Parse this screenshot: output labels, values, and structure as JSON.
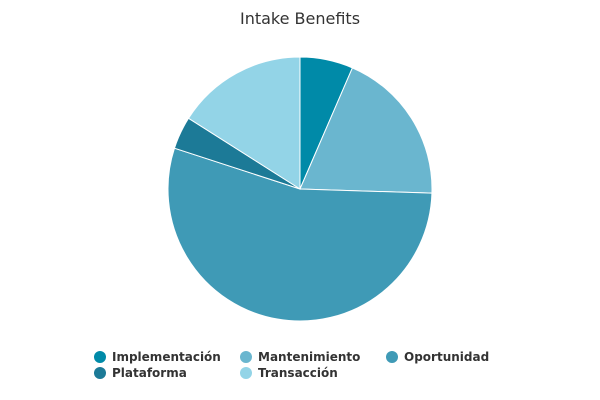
{
  "chart_data": {
    "type": "pie",
    "title": "Intake Benefits",
    "legend_position": "bottom",
    "start_angle_deg": 0,
    "direction": "clockwise",
    "slices": [
      {
        "name": "Implementación",
        "value": 6.5,
        "color": "#008aa8"
      },
      {
        "name": "Mantenimiento",
        "value": 19.0,
        "color": "#6ab6cf"
      },
      {
        "name": "Oportunidad",
        "value": 54.5,
        "color": "#3f9ab6"
      },
      {
        "name": "Plataforma",
        "value": 4.0,
        "color": "#1c7a97"
      },
      {
        "name": "Transacción",
        "value": 16.0,
        "color": "#93d4e7"
      }
    ]
  }
}
